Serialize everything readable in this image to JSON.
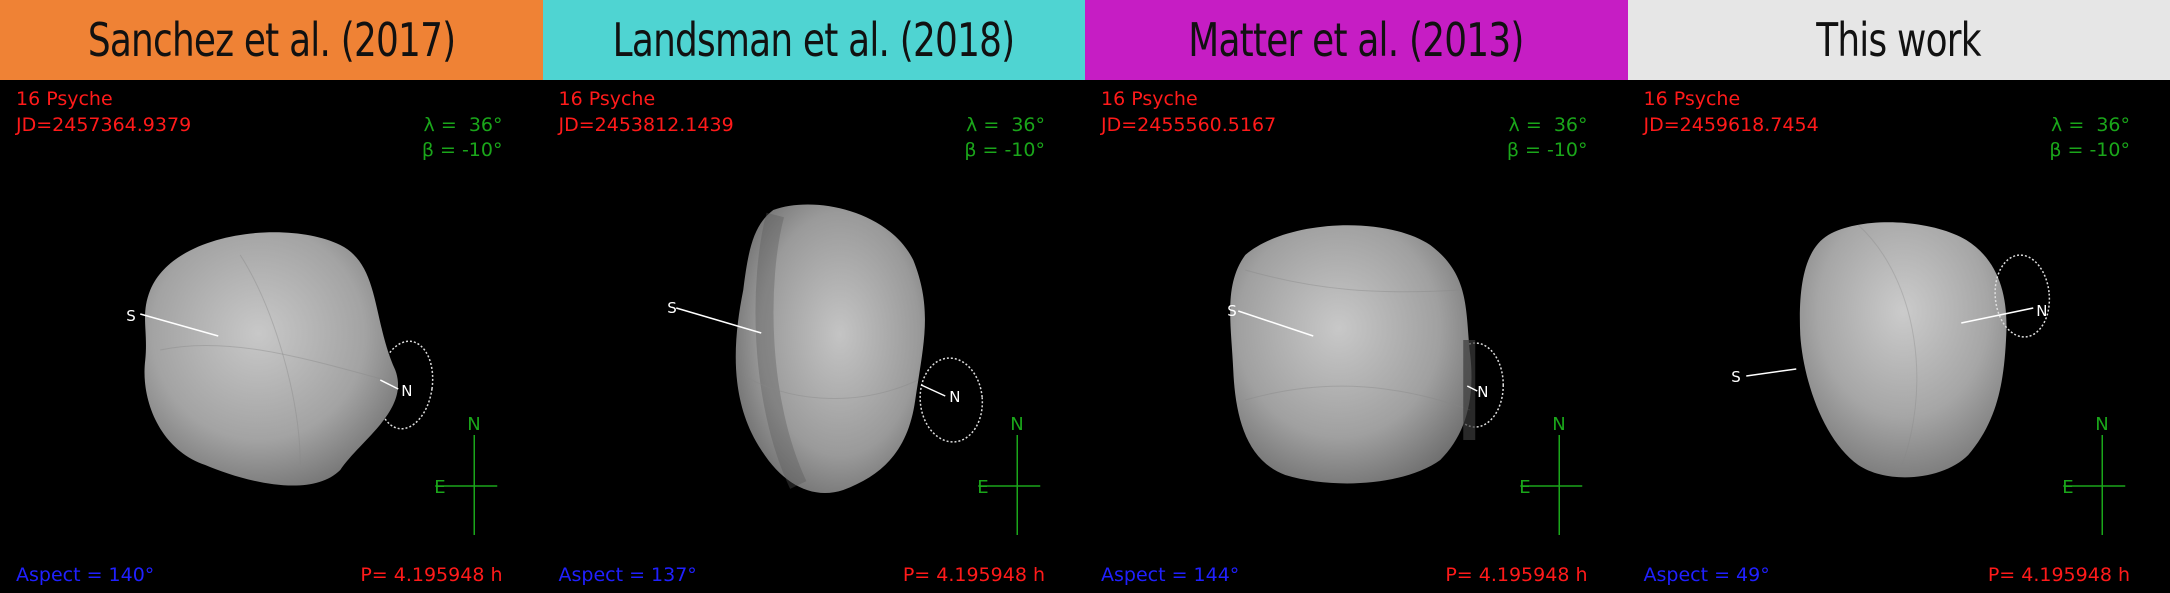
{
  "panels": [
    {
      "title": "Sanchez et al. (2017)",
      "header_color": "#ef8235",
      "asteroid": "16 Psyche",
      "jd": "JD=2457364.9379",
      "lambda": "λ =  36°",
      "beta": "β = -10°",
      "aspect": "Aspect = 140°",
      "period": "P= 4.195948 h",
      "pole_south": "S",
      "pole_north": "N",
      "compass_north": "N",
      "compass_east": "E"
    },
    {
      "title": "Landsman et al. (2018)",
      "header_color": "#4fd4d2",
      "asteroid": "16 Psyche",
      "jd": "JD=2453812.1439",
      "lambda": "λ =  36°",
      "beta": "β = -10°",
      "aspect": "Aspect = 137°",
      "period": "P= 4.195948 h",
      "pole_south": "S",
      "pole_north": "N",
      "compass_north": "N",
      "compass_east": "E"
    },
    {
      "title": "Matter et al. (2013)",
      "header_color": "#c61dc4",
      "asteroid": "16 Psyche",
      "jd": "JD=2455560.5167",
      "lambda": "λ =  36°",
      "beta": "β = -10°",
      "aspect": "Aspect = 144°",
      "period": "P= 4.195948 h",
      "pole_south": "S",
      "pole_north": "N",
      "compass_north": "N",
      "compass_east": "E"
    },
    {
      "title": "This work",
      "header_color": "#e6e6e6",
      "asteroid": "16 Psyche",
      "jd": "JD=2459618.7454",
      "lambda": "λ =  36°",
      "beta": "β = -10°",
      "aspect": "Aspect = 49°",
      "period": "P= 4.195948 h",
      "pole_south": "S",
      "pole_north": "N",
      "compass_north": "N",
      "compass_east": "E"
    }
  ]
}
